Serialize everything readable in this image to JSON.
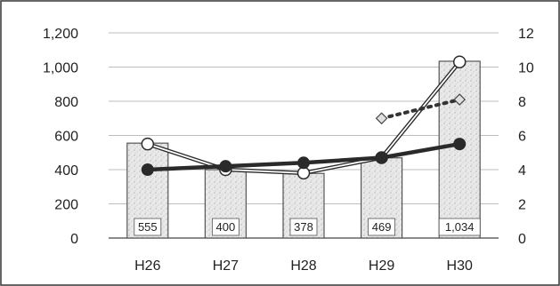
{
  "chart_data": {
    "type": "bar",
    "categories": [
      "H26",
      "H27",
      "H28",
      "H29",
      "H30"
    ],
    "bars": {
      "values": [
        555,
        400,
        378,
        469,
        1034
      ],
      "data_labels": [
        "555",
        "400",
        "378",
        "469",
        "1,034"
      ],
      "axis": "left"
    },
    "lines": [
      {
        "style": "double-line-hollow-circle",
        "axis": "right",
        "values": [
          5.5,
          4.0,
          3.8,
          4.7,
          10.3
        ]
      },
      {
        "style": "thick-line-solid-circle",
        "axis": "right",
        "values": [
          4.0,
          4.2,
          4.4,
          4.7,
          5.5
        ]
      },
      {
        "style": "dotted-line-diamond",
        "axis": "right",
        "values": [
          null,
          null,
          null,
          7.0,
          8.1
        ]
      }
    ],
    "left_axis": {
      "min": 0,
      "max": 1200,
      "ticks": [
        0,
        200,
        400,
        600,
        800,
        1000,
        1200
      ],
      "tick_labels": [
        "0",
        "200",
        "400",
        "600",
        "800",
        "1,000",
        "1,200"
      ]
    },
    "right_axis": {
      "min": 0,
      "max": 12,
      "ticks": [
        0,
        2,
        4,
        6,
        8,
        10,
        12
      ],
      "tick_labels": [
        "0",
        "2",
        "4",
        "6",
        "8",
        "10",
        "12"
      ]
    },
    "grid": true,
    "colors": {
      "bar_fill": "#e8e8e8",
      "bar_edge": "#555555",
      "line_dark": "#2a2a2a",
      "dotted": "#333333",
      "diamond_fill": "#e0e0e0",
      "grid": "#bdbdbd"
    }
  }
}
